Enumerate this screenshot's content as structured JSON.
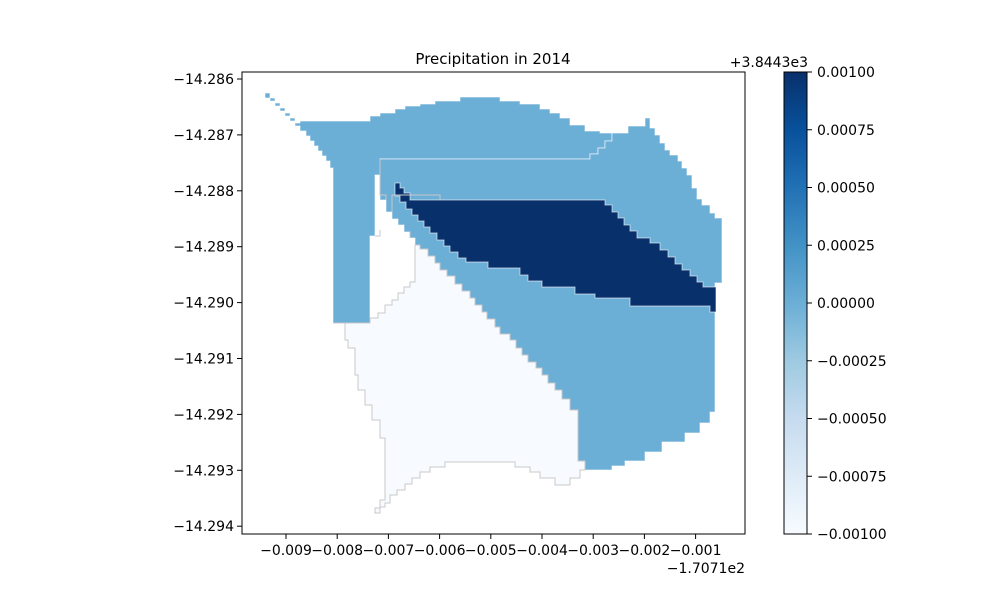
{
  "chart_data": {
    "type": "heatmap",
    "title": "Precipitation in 2014",
    "xlabel": "",
    "ylabel": "",
    "x_ticks": [
      "−0.009",
      "−0.008",
      "−0.007",
      "−0.006",
      "−0.005",
      "−0.004",
      "−0.003",
      "−0.002",
      "−0.001"
    ],
    "x_offset_label": "−1.7071e2",
    "y_ticks": [
      "−14.286",
      "−14.287",
      "−14.288",
      "−14.289",
      "−14.290",
      "−14.291",
      "−14.292",
      "−14.293",
      "−14.294"
    ],
    "xlim": [
      -170.7199,
      -170.7109
    ],
    "ylim": [
      -14.2941,
      -14.2857
    ],
    "grid": false,
    "colormap": "Blues",
    "colorbar": {
      "range": [
        -0.001,
        0.001
      ],
      "offset_label": "+3.8443e3",
      "ticks": [
        "0.00100",
        "0.00075",
        "0.00050",
        "0.00025",
        "0.00000",
        "−0.00025",
        "−0.00050",
        "−0.00075",
        "−0.00100"
      ]
    },
    "regions": [
      {
        "id": "north-region",
        "value": 0.0,
        "color": "#6baed6"
      },
      {
        "id": "center-region",
        "value": 0.001,
        "color": "#08306b"
      },
      {
        "id": "east-region",
        "value": 0.0,
        "color": "#6baed6"
      },
      {
        "id": "south-region",
        "value": -0.001,
        "color": "#f7fbff"
      }
    ]
  }
}
